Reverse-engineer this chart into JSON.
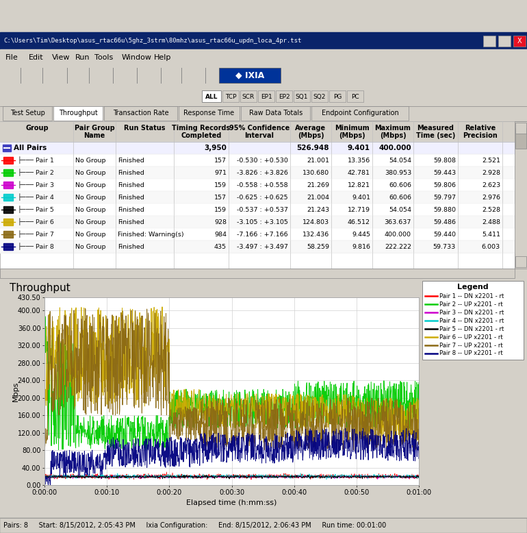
{
  "title": "Throughput",
  "xlabel": "Elapsed time (h:mm:ss)",
  "ylabel": "Mbps",
  "ymax": 430.5,
  "yticks": [
    0.0,
    40.0,
    80.0,
    120.0,
    160.0,
    200.0,
    240.0,
    280.0,
    320.0,
    360.0,
    400.0,
    430.5
  ],
  "xtick_labels": [
    "0:00:00",
    "0:00:10",
    "0:00:20",
    "0:00:30",
    "0:00:40",
    "0:00:50",
    "0:01:00"
  ],
  "duration": 60,
  "window_bg": "#d4d0c8",
  "title_bar_color": "#0a246a",
  "title_bar_text": "C:\\Users\\Tim\\Desktop\\asus_rtac66u\\5ghz_3strm\\80mhz\\asus_rtac66u_updn_loca_4pr.tst",
  "menu_items": [
    "File",
    "Edit",
    "View",
    "Run",
    "Tools",
    "Window",
    "Help"
  ],
  "tabs": [
    "Test Setup",
    "Throughput",
    "Transaction Rate",
    "Response Time",
    "Raw Data Totals",
    "Endpoint Configuration"
  ],
  "active_tab": 1,
  "col_headers": [
    "Group",
    "Pair Group\nName",
    "Run Status",
    "Timing Records\nCompleted",
    "95% Confidence\nInterval",
    "Average\n(Mbps)",
    "Minimum\n(Mbps)",
    "Maximum\n(Mbps)",
    "Measured\nTime (sec)",
    "Relative\nPrecision"
  ],
  "all_pairs_row": [
    "All Pairs",
    "",
    "",
    "3,950",
    "",
    "526.948",
    "9.401",
    "400.000",
    "",
    ""
  ],
  "pair_rows": [
    [
      "Pair 1",
      "No Group",
      "Finished",
      "157",
      "-0.530 : +0.530",
      "21.001",
      "13.356",
      "54.054",
      "59.808",
      "2.521"
    ],
    [
      "Pair 2",
      "No Group",
      "Finished",
      "971",
      "-3.826 : +3.826",
      "130.680",
      "42.781",
      "380.953",
      "59.443",
      "2.928"
    ],
    [
      "Pair 3",
      "No Group",
      "Finished",
      "159",
      "-0.558 : +0.558",
      "21.269",
      "12.821",
      "60.606",
      "59.806",
      "2.623"
    ],
    [
      "Pair 4",
      "No Group",
      "Finished",
      "157",
      "-0.625 : +0.625",
      "21.004",
      "9.401",
      "60.606",
      "59.797",
      "2.976"
    ],
    [
      "Pair 5",
      "No Group",
      "Finished",
      "159",
      "-0.537 : +0.537",
      "21.243",
      "12.719",
      "54.054",
      "59.880",
      "2.528"
    ],
    [
      "Pair 6",
      "No Group",
      "Finished",
      "928",
      "-3.105 : +3.105",
      "124.803",
      "46.512",
      "363.637",
      "59.486",
      "2.488"
    ],
    [
      "Pair 7",
      "No Group",
      "Finished: Warning(s)",
      "984",
      "-7.166 : +7.166",
      "132.436",
      "9.445",
      "400.000",
      "59.440",
      "5.411"
    ],
    [
      "Pair 8",
      "No Group",
      "Finished",
      "435",
      "-3.497 : +3.497",
      "58.259",
      "9.816",
      "222.222",
      "59.733",
      "6.003"
    ]
  ],
  "pair_colors": [
    "#ff0000",
    "#00cc00",
    "#cc00cc",
    "#00cccc",
    "#000000",
    "#ccaa00",
    "#8b6914",
    "#000080"
  ],
  "legend_labels": [
    "Pair 1 -- DN x2201 - rt",
    "Pair 2 -- UP x2201 - rt",
    "Pair 3 -- DN x2201 - rt",
    "Pair 4 -- DN x2201 - rt",
    "Pair 5 -- DN x2201 - rt",
    "Pair 6 -- UP x2201 - rt",
    "Pair 7 -- UP x2201 - rt",
    "Pair 8 -- UP x2201 - rt"
  ],
  "status_bar": "Pairs: 8     Start: 8/15/2012, 2:05:43 PM     Ixia Configuration:     End: 8/15/2012, 2:06:43 PM     Run time: 00:01:00",
  "fig_w": 7.7,
  "fig_h": 7.78,
  "dpi": 100
}
